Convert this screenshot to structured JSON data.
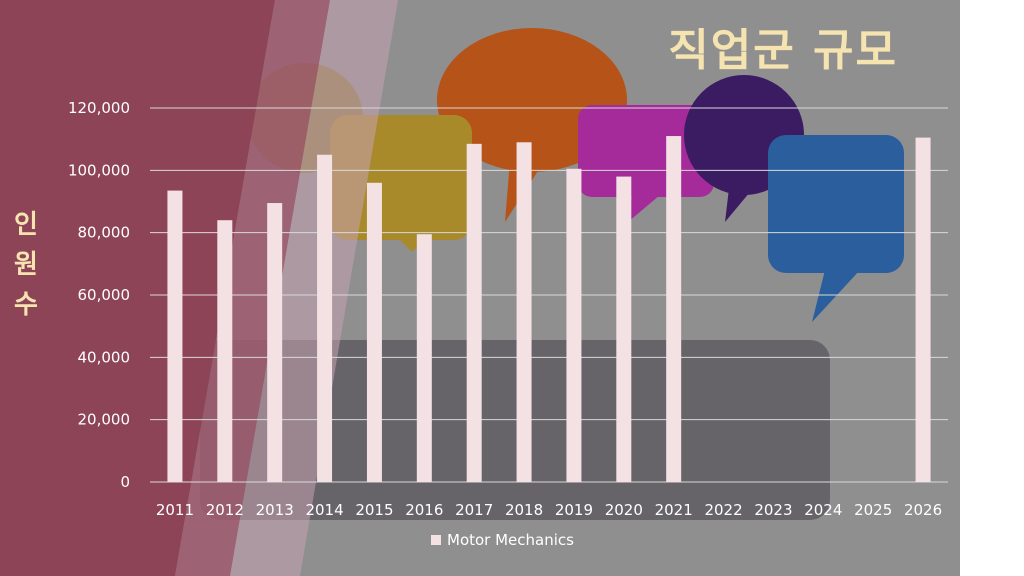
{
  "chart_data": {
    "type": "bar",
    "title": "직업군 규모",
    "ylabel": "인원수",
    "xlabel": "",
    "categories": [
      "2011",
      "2012",
      "2013",
      "2014",
      "2015",
      "2016",
      "2017",
      "2018",
      "2019",
      "2020",
      "2021",
      "2022",
      "2023",
      "2024",
      "2025",
      "2026"
    ],
    "series": [
      {
        "name": "Motor Mechanics",
        "values": [
          93500,
          84000,
          89500,
          105000,
          96000,
          79500,
          108500,
          109000,
          100500,
          98000,
          111000,
          null,
          null,
          null,
          null,
          110500
        ]
      }
    ],
    "ylim": [
      0,
      120000
    ],
    "yticks": [
      0,
      20000,
      40000,
      60000,
      80000,
      100000,
      120000
    ],
    "ytick_labels": [
      "0",
      "20,000",
      "40,000",
      "60,000",
      "80,000",
      "100,000",
      "120,000"
    ],
    "grid": true,
    "legend": "bottom",
    "colors": {
      "bar": "#f3e1e4",
      "background": "#8f8f8f",
      "panel": "#8e4457",
      "title": "#f6e4b0",
      "text": "#ffffff"
    }
  }
}
